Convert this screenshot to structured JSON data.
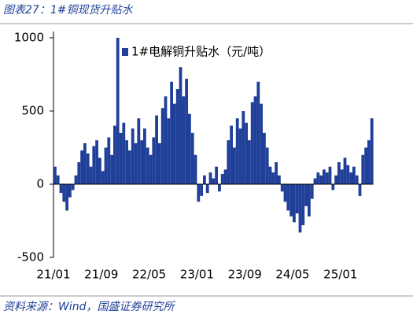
{
  "header": {
    "title": "图表27：1#铜现货升贴水"
  },
  "chart_data": {
    "type": "bar",
    "color": "#1f3f99",
    "legend": "top-center",
    "series": [
      {
        "name": "1#电解铜升贴水（元/吨）",
        "color": "#1f3f99",
        "values": [
          120,
          60,
          -60,
          -120,
          -180,
          -90,
          -40,
          60,
          150,
          230,
          280,
          210,
          120,
          260,
          300,
          180,
          90,
          250,
          320,
          200,
          400,
          1000,
          350,
          420,
          300,
          230,
          380,
          280,
          450,
          300,
          380,
          250,
          200,
          320,
          470,
          280,
          520,
          600,
          450,
          700,
          550,
          650,
          800,
          600,
          720,
          480,
          350,
          200,
          -120,
          -80,
          60,
          -60,
          80,
          40,
          120,
          -50,
          70,
          100,
          300,
          400,
          250,
          450,
          380,
          500,
          420,
          300,
          560,
          600,
          700,
          550,
          350,
          250,
          120,
          80,
          150,
          60,
          -50,
          -120,
          -180,
          -220,
          -260,
          -200,
          -330,
          -280,
          -150,
          -220,
          -100,
          40,
          80,
          60,
          100,
          80,
          120,
          -40,
          60,
          150,
          100,
          180,
          130,
          80,
          120,
          60,
          -80,
          200,
          250,
          300,
          450
        ]
      }
    ],
    "categories": [
      "21/01",
      null,
      null,
      null,
      null,
      null,
      null,
      null,
      null,
      null,
      null,
      null,
      null,
      null,
      null,
      null,
      "21/09",
      null,
      null,
      null,
      null,
      null,
      null,
      null,
      null,
      null,
      null,
      null,
      null,
      null,
      null,
      null,
      "22/05",
      null,
      null,
      null,
      null,
      null,
      null,
      null,
      null,
      null,
      null,
      null,
      null,
      null,
      null,
      null,
      "23/01",
      null,
      null,
      null,
      null,
      null,
      null,
      null,
      null,
      null,
      null,
      null,
      null,
      null,
      null,
      null,
      "23/09",
      null,
      null,
      null,
      null,
      null,
      null,
      null,
      null,
      null,
      null,
      null,
      null,
      null,
      null,
      null,
      "24/05",
      null,
      null,
      null,
      null,
      null,
      null,
      null,
      null,
      null,
      null,
      null,
      null,
      null,
      null,
      null,
      "25/01",
      null,
      null,
      null,
      null,
      null,
      null,
      null,
      null,
      null,
      null
    ],
    "ylim": [
      -500,
      1000
    ],
    "yticks": [
      -500,
      0,
      500,
      1000
    ],
    "grid": false
  },
  "footer": {
    "source": "资料来源：Wind，国盛证券研究所"
  }
}
